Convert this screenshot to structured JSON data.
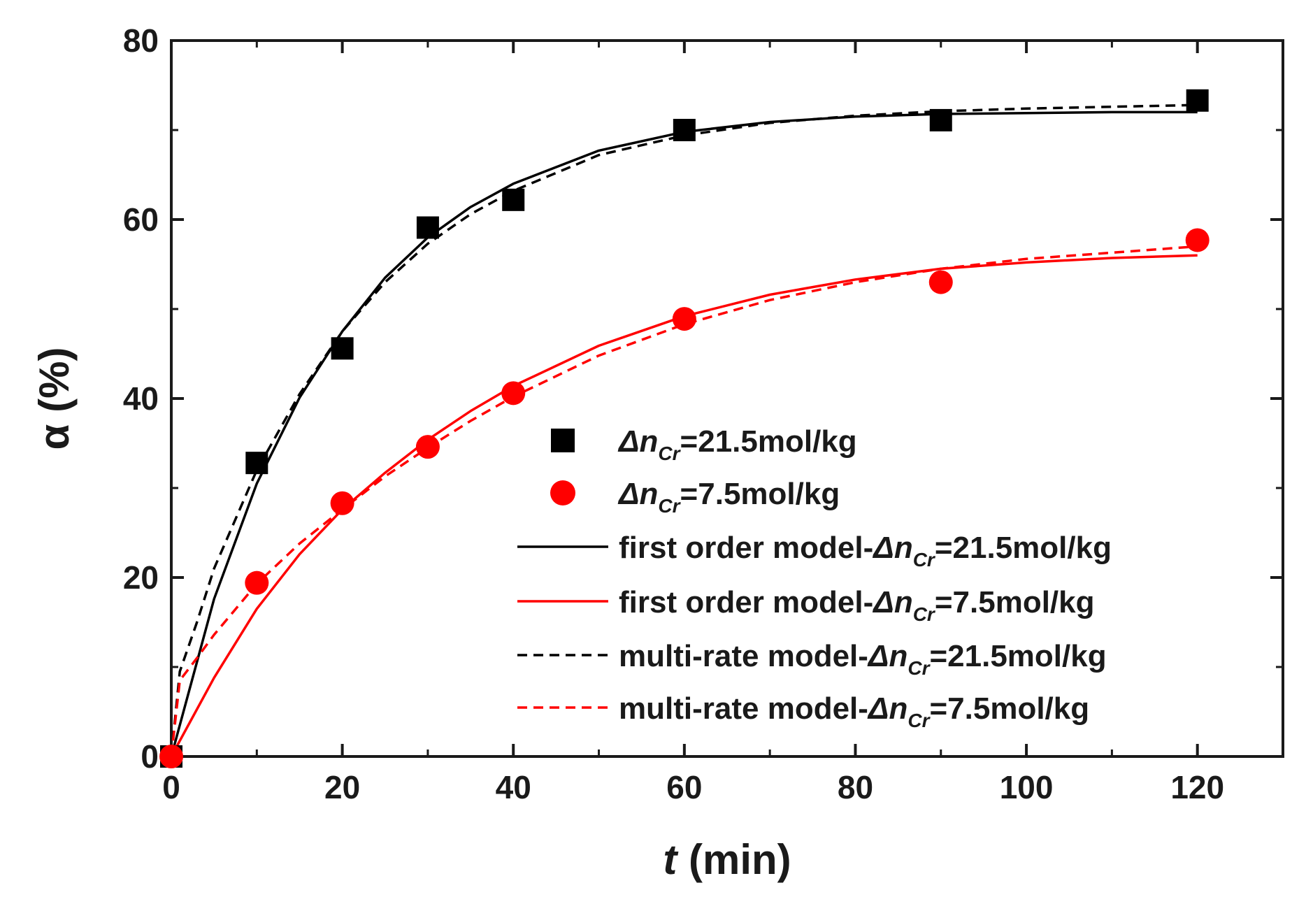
{
  "chart_data": {
    "type": "scatter",
    "xlabel": {
      "var": "t",
      "unit": " (min)"
    },
    "ylabel": "α (%)",
    "xlim": [
      0,
      130
    ],
    "ylim": [
      0,
      80
    ],
    "xticks": [
      0,
      20,
      40,
      60,
      80,
      100,
      120
    ],
    "yticks": [
      0,
      20,
      40,
      60,
      80
    ],
    "grid": false,
    "legend_position": "center-right",
    "series": [
      {
        "name": "Δn_Cr=21.5mol/kg",
        "kind": "markers",
        "marker": "square",
        "color": "#000000",
        "x": [
          0,
          10,
          20,
          30,
          40,
          60,
          90,
          120
        ],
        "y": [
          0,
          32.8,
          45.6,
          59.1,
          62.2,
          70.0,
          71.1,
          73.3
        ]
      },
      {
        "name": "Δn_Cr=7.5mol/kg",
        "kind": "markers",
        "marker": "circle",
        "color": "#ff0000",
        "x": [
          0,
          10,
          20,
          30,
          40,
          60,
          90,
          120
        ],
        "y": [
          0,
          19.4,
          28.3,
          34.6,
          40.6,
          48.9,
          53.0,
          57.7
        ]
      },
      {
        "name": "first order model-Δn_Cr=21.5mol/kg",
        "kind": "line",
        "dash": "solid",
        "color": "#000000",
        "x": [
          0,
          5,
          10,
          15,
          20,
          25,
          30,
          35,
          40,
          50,
          60,
          70,
          80,
          90,
          100,
          110,
          120
        ],
        "y": [
          0,
          17.6,
          30.5,
          40.1,
          47.5,
          53.5,
          58.0,
          61.4,
          64.0,
          67.7,
          69.8,
          70.9,
          71.5,
          71.8,
          71.9,
          72.0,
          72.0
        ]
      },
      {
        "name": "first order model-Δn_Cr=7.5mol/kg",
        "kind": "line",
        "dash": "solid",
        "color": "#ff0000",
        "x": [
          0,
          5,
          10,
          15,
          20,
          25,
          30,
          35,
          40,
          50,
          60,
          70,
          80,
          90,
          100,
          110,
          120
        ],
        "y": [
          0,
          8.8,
          16.5,
          22.6,
          27.6,
          31.7,
          35.4,
          38.6,
          41.4,
          45.9,
          49.2,
          51.6,
          53.3,
          54.5,
          55.2,
          55.7,
          56.0
        ]
      },
      {
        "name": "multi-rate model-Δn_Cr=21.5mol/kg",
        "kind": "line",
        "dash": "dashed",
        "color": "#000000",
        "x": [
          0,
          1,
          3,
          5,
          10,
          15,
          20,
          25,
          30,
          35,
          40,
          50,
          60,
          70,
          80,
          90,
          100,
          110,
          120
        ],
        "y": [
          0,
          9.5,
          15.0,
          21.0,
          32.0,
          40.5,
          47.5,
          53.0,
          57.3,
          60.6,
          63.2,
          67.2,
          69.4,
          70.8,
          71.6,
          72.1,
          72.4,
          72.6,
          72.8
        ]
      },
      {
        "name": "multi-rate model-Δn_Cr=7.5mol/kg",
        "kind": "line",
        "dash": "dashed",
        "color": "#ff0000",
        "x": [
          0,
          1,
          3,
          5,
          10,
          15,
          20,
          25,
          30,
          35,
          40,
          50,
          60,
          70,
          80,
          90,
          100,
          110,
          120
        ],
        "y": [
          0,
          8.5,
          11.0,
          13.6,
          19.3,
          23.8,
          27.6,
          31.3,
          34.5,
          37.5,
          40.2,
          44.8,
          48.3,
          51.0,
          53.0,
          54.5,
          55.6,
          56.3,
          57.0
        ]
      }
    ]
  }
}
